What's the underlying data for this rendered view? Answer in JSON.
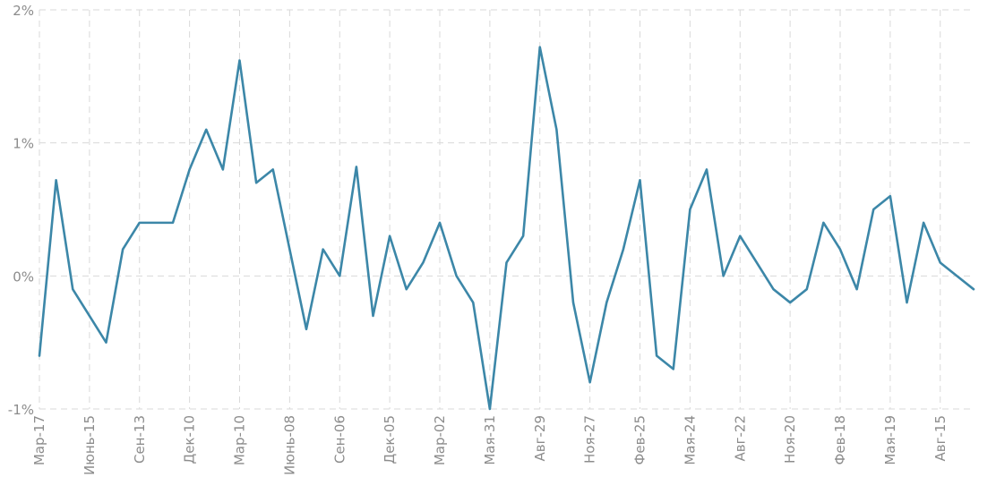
{
  "chart_data": {
    "type": "line",
    "title": "",
    "xlabel": "",
    "ylabel": "",
    "ylim": [
      -1,
      2
    ],
    "y_ticks": [
      -1,
      0,
      1,
      2
    ],
    "y_tick_labels": [
      "-1%",
      "0%",
      "1%",
      "2%"
    ],
    "y_unit": "%",
    "grid": true,
    "legend": "none",
    "line_color": "#3c87a8",
    "x_tick_labels": [
      "Мар-17",
      "Июнь-15",
      "Сен-13",
      "Дек-10",
      "Мар-10",
      "Июнь-08",
      "Сен-06",
      "Дек-05",
      "Мар-02",
      "Мая-31",
      "Авг-29",
      "Ноя-27",
      "Фев-25",
      "Мая-24",
      "Авг-22",
      "Ноя-20",
      "Фев-18",
      "Мая-19",
      "Авг-15"
    ],
    "x_tick_index": [
      0,
      3,
      6,
      9,
      12,
      15,
      18,
      21,
      24,
      27,
      30,
      33,
      36,
      39,
      42,
      45,
      48,
      51,
      54
    ],
    "series": [
      {
        "values": [
          -0.6,
          0.72,
          -0.1,
          -0.3,
          -0.5,
          0.2,
          0.4,
          0.4,
          0.4,
          0.8,
          1.1,
          0.8,
          1.62,
          0.7,
          0.8,
          0.2,
          -0.4,
          0.2,
          0.0,
          0.82,
          -0.3,
          0.3,
          -0.1,
          0.1,
          0.4,
          0.0,
          -0.2,
          -1.0,
          0.1,
          0.3,
          1.72,
          1.1,
          -0.2,
          -0.8,
          -0.2,
          0.2,
          0.72,
          -0.6,
          -0.7,
          0.5,
          0.8,
          0.0,
          0.3,
          0.1,
          -0.1,
          -0.2,
          -0.1,
          0.4,
          0.2,
          -0.1,
          0.5,
          0.6,
          -0.2,
          0.4,
          0.1,
          0.0,
          -0.1
        ]
      }
    ]
  }
}
